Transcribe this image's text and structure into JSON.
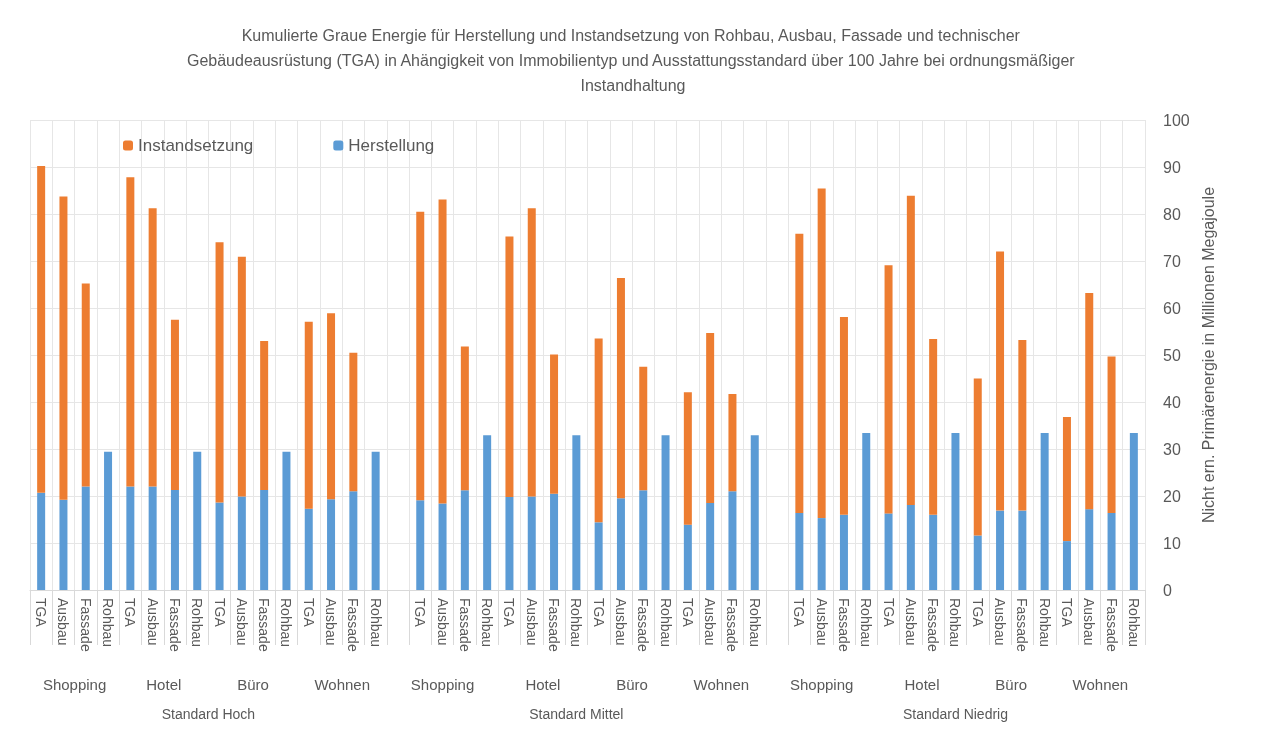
{
  "chart_data": {
    "type": "bar",
    "title": "Kumulierte Graue Energie für Herstellung und Instandsetzung von Rohbau, Ausbau, Fassade und technischer Gebäudeausrüstung (TGA) in Ahängigkeit von Immobilientyp und Ausstattungsstandard über 100 Jahre bei ordnungsmäßiger Instandhaltung",
    "ylabel": "Nicht ern. Primärenergie in Millionen Megajoule",
    "categories": [
      "TGA",
      "Ausbau",
      "Fassade",
      "Rohbau",
      "TGA",
      "Ausbau",
      "Fassade",
      "Rohbau",
      "TGA",
      "Ausbau",
      "Fassade",
      "Rohbau",
      "TGA",
      "Ausbau",
      "Fassade",
      "Rohbau",
      null,
      "TGA",
      "Ausbau",
      "Fassade",
      "Rohbau",
      "TGA",
      "Ausbau",
      "Fassade",
      "Rohbau",
      "TGA",
      "Ausbau",
      "Fassade",
      "Rohbau",
      "TGA",
      "Ausbau",
      "Fassade",
      "Rohbau",
      null,
      "TGA",
      "Ausbau",
      "Fassade",
      "Rohbau",
      "TGA",
      "Ausbau",
      "Fassade",
      "Rohbau",
      "TGA",
      "Ausbau",
      "Fassade",
      "Rohbau",
      "TGA",
      "Ausbau",
      "Fassade",
      "Rohbau"
    ],
    "stacked": true,
    "series": [
      {
        "name": "Herstellung",
        "color": "#5b9bd5",
        "values": [
          20.7,
          19.2,
          22.0,
          29.4,
          22.0,
          22.0,
          21.3,
          29.4,
          18.6,
          19.9,
          21.3,
          29.4,
          17.3,
          19.3,
          21.0,
          29.4,
          null,
          19.1,
          18.4,
          21.2,
          32.9,
          19.8,
          19.9,
          20.5,
          32.9,
          14.4,
          19.5,
          21.2,
          32.9,
          13.9,
          18.5,
          21.0,
          32.9,
          null,
          16.4,
          15.3,
          16.0,
          33.4,
          16.3,
          18.1,
          16.0,
          33.4,
          11.6,
          16.9,
          16.9,
          33.4,
          10.4,
          17.2,
          16.4,
          33.4
        ]
      },
      {
        "name": "Instandsetzung",
        "color": "#ed7d31",
        "values": [
          69.5,
          64.5,
          43.2,
          null,
          65.8,
          59.2,
          36.2,
          null,
          55.4,
          51.0,
          31.7,
          null,
          39.8,
          39.6,
          29.5,
          null,
          null,
          61.4,
          64.7,
          30.6,
          null,
          55.4,
          61.3,
          29.6,
          null,
          39.1,
          46.9,
          26.3,
          null,
          28.2,
          36.2,
          20.7,
          null,
          null,
          59.4,
          70.1,
          42.1,
          null,
          52.8,
          65.8,
          37.4,
          null,
          33.4,
          55.1,
          36.3,
          null,
          26.4,
          46.0,
          33.3,
          null
        ]
      }
    ],
    "ylim": [
      0,
      100
    ],
    "yticks": [
      0,
      10,
      20,
      30,
      40,
      50,
      60,
      70,
      80,
      90,
      100
    ],
    "grid": true,
    "legend": "top left",
    "annotations": [
      "Shopping",
      "Hotel",
      "Büro",
      "Wohnen",
      "Shopping",
      "Hotel",
      "Büro",
      "Wohnen",
      "Shopping",
      "Hotel",
      "Büro",
      "Wohnen",
      "Standard Hoch",
      "Standard Mittel",
      "Standard Niedrig"
    ]
  }
}
